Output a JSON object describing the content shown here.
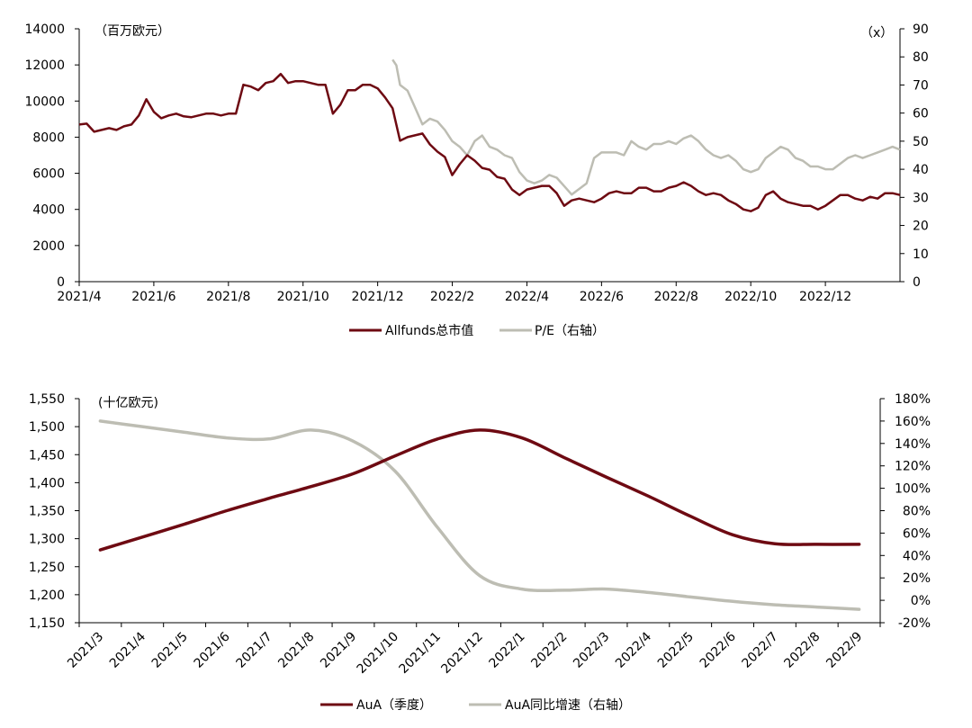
{
  "colors": {
    "primary": "#6e0a12",
    "secondary": "#bdbdb3",
    "axis": "#000000"
  },
  "chart_data": [
    {
      "type": "line",
      "left_unit": "（百万欧元）",
      "right_unit": "（x）",
      "ylim": [
        0,
        14000
      ],
      "y2lim": [
        0,
        90
      ],
      "y_ticks": [
        "0",
        "2000",
        "4000",
        "6000",
        "8000",
        "10000",
        "12000",
        "14000"
      ],
      "y2_ticks": [
        "0",
        "10",
        "20",
        "30",
        "40",
        "50",
        "60",
        "70",
        "80",
        "90"
      ],
      "x_ticks": [
        "2021/4",
        "2021/6",
        "2021/8",
        "2021/10",
        "2021/12",
        "2022/2",
        "2022/4",
        "2022/6",
        "2022/8",
        "2022/10",
        "2022/12"
      ],
      "x_tick_pos": [
        0,
        2,
        4,
        6,
        8,
        10,
        12,
        14,
        16,
        18,
        20
      ],
      "x_range": [
        0,
        22
      ],
      "series": [
        {
          "name": "Allfunds总市值",
          "axis": "left",
          "x": [
            0,
            0.2,
            0.4,
            0.6,
            0.8,
            1.0,
            1.2,
            1.4,
            1.6,
            1.8,
            2.0,
            2.2,
            2.4,
            2.6,
            2.8,
            3.0,
            3.2,
            3.4,
            3.6,
            3.8,
            4.0,
            4.2,
            4.4,
            4.6,
            4.8,
            5.0,
            5.2,
            5.4,
            5.6,
            5.8,
            6.0,
            6.2,
            6.4,
            6.6,
            6.8,
            7.0,
            7.2,
            7.4,
            7.6,
            7.8,
            8.0,
            8.2,
            8.4,
            8.6,
            8.8,
            9.0,
            9.2,
            9.4,
            9.6,
            9.8,
            10.0,
            10.2,
            10.4,
            10.6,
            10.8,
            11.0,
            11.2,
            11.4,
            11.6,
            11.8,
            12.0,
            12.2,
            12.4,
            12.6,
            12.8,
            13.0,
            13.2,
            13.4,
            13.6,
            13.8,
            14.0,
            14.2,
            14.4,
            14.6,
            14.8,
            15.0,
            15.2,
            15.4,
            15.6,
            15.8,
            16.0,
            16.2,
            16.4,
            16.6,
            16.8,
            17.0,
            17.2,
            17.4,
            17.6,
            17.8,
            18.0,
            18.2,
            18.4,
            18.6,
            18.8,
            19.0,
            19.2,
            19.4,
            19.6,
            19.8,
            20.0,
            20.2,
            20.4,
            20.6,
            20.8,
            21.0,
            21.2,
            21.4,
            21.6,
            21.8,
            22.0
          ],
          "values": [
            8700,
            8750,
            8300,
            8400,
            8500,
            8400,
            8600,
            8700,
            9200,
            10100,
            9400,
            9050,
            9200,
            9300,
            9150,
            9100,
            9200,
            9300,
            9300,
            9200,
            9300,
            9300,
            10900,
            10800,
            10600,
            11000,
            11100,
            11500,
            11000,
            11100,
            11100,
            11000,
            10900,
            10900,
            9300,
            9800,
            10600,
            10600,
            10900,
            10900,
            10700,
            10200,
            9600,
            7800,
            8000,
            8100,
            8200,
            7600,
            7200,
            6900,
            5900,
            6500,
            7000,
            6700,
            6300,
            6200,
            5800,
            5700,
            5100,
            4800,
            5100,
            5200,
            5300,
            5300,
            4900,
            4200,
            4500,
            4600,
            4500,
            4400,
            4600,
            4900,
            5000,
            4900,
            4900,
            5200,
            5200,
            5000,
            5000,
            5200,
            5300,
            5500,
            5300,
            5000,
            4800,
            4900,
            4800,
            4500,
            4300,
            4000,
            3900,
            4100,
            4800,
            5000,
            4600,
            4400,
            4300,
            4200,
            4200,
            4000,
            4200,
            4500,
            4800,
            4800,
            4600,
            4500,
            4700,
            4600,
            4900,
            4900,
            4800
          ]
        },
        {
          "name": "P/E（右轴）",
          "axis": "right",
          "x": [
            8.4,
            8.5,
            8.6,
            8.8,
            9.0,
            9.2,
            9.4,
            9.6,
            9.8,
            10.0,
            10.2,
            10.4,
            10.6,
            10.8,
            11.0,
            11.2,
            11.4,
            11.6,
            11.8,
            12.0,
            12.2,
            12.4,
            12.6,
            12.8,
            13.0,
            13.2,
            13.4,
            13.6,
            13.8,
            14.0,
            14.2,
            14.4,
            14.6,
            14.8,
            15.0,
            15.2,
            15.4,
            15.6,
            15.8,
            16.0,
            16.2,
            16.4,
            16.6,
            16.8,
            17.0,
            17.2,
            17.4,
            17.6,
            17.8,
            18.0,
            18.2,
            18.4,
            18.6,
            18.8,
            19.0,
            19.2,
            19.4,
            19.6,
            19.8,
            20.0,
            20.2,
            20.4,
            20.6,
            20.8,
            21.0,
            21.2,
            21.4,
            21.6,
            21.8,
            22.0
          ],
          "values": [
            79,
            77,
            70,
            68,
            62,
            56,
            58,
            57,
            54,
            50,
            48,
            45,
            50,
            52,
            48,
            47,
            45,
            44,
            39,
            36,
            35,
            36,
            38,
            37,
            34,
            31,
            33,
            35,
            44,
            46,
            46,
            46,
            45,
            50,
            48,
            47,
            49,
            49,
            50,
            49,
            51,
            52,
            50,
            47,
            45,
            44,
            45,
            43,
            40,
            39,
            40,
            44,
            46,
            48,
            47,
            44,
            43,
            41,
            41,
            40,
            40,
            42,
            44,
            45,
            44,
            45,
            46,
            47,
            48,
            47
          ]
        }
      ],
      "legend": [
        "Allfunds总市值",
        "P/E（右轴）"
      ]
    },
    {
      "type": "line",
      "left_unit": "(十亿欧元)",
      "ylim": [
        1150,
        1550
      ],
      "y2lim": [
        -20,
        180
      ],
      "y_ticks": [
        "1,150",
        "1,200",
        "1,250",
        "1,300",
        "1,350",
        "1,400",
        "1,450",
        "1,500",
        "1,550"
      ],
      "y2_ticks": [
        "-20%",
        "0%",
        "20%",
        "40%",
        "60%",
        "80%",
        "100%",
        "120%",
        "140%",
        "160%",
        "180%"
      ],
      "categories": [
        "2021/3",
        "2021/4",
        "2021/5",
        "2021/6",
        "2021/7",
        "2021/8",
        "2021/9",
        "2021/10",
        "2021/11",
        "2021/12",
        "2022/1",
        "2022/2",
        "2022/3",
        "2022/4",
        "2022/5",
        "2022/6",
        "2022/7",
        "2022/8",
        "2022/9"
      ],
      "series": [
        {
          "name": "AuA（季度）",
          "axis": "left",
          "values": [
            1280,
            1303,
            1326,
            1350,
            1372,
            1393,
            1416,
            1448,
            1478,
            1494,
            1480,
            1445,
            1410,
            1376,
            1340,
            1307,
            1291,
            1290,
            1290
          ]
        },
        {
          "name": "AuA同比增速（右轴）",
          "axis": "right",
          "values": [
            160,
            155,
            150,
            145,
            144,
            152,
            142,
            115,
            65,
            22,
            10,
            9,
            10,
            7,
            3,
            -1,
            -4,
            -6,
            -8
          ]
        }
      ],
      "legend": [
        "AuA（季度）",
        "AuA同比增速（右轴）"
      ]
    }
  ]
}
